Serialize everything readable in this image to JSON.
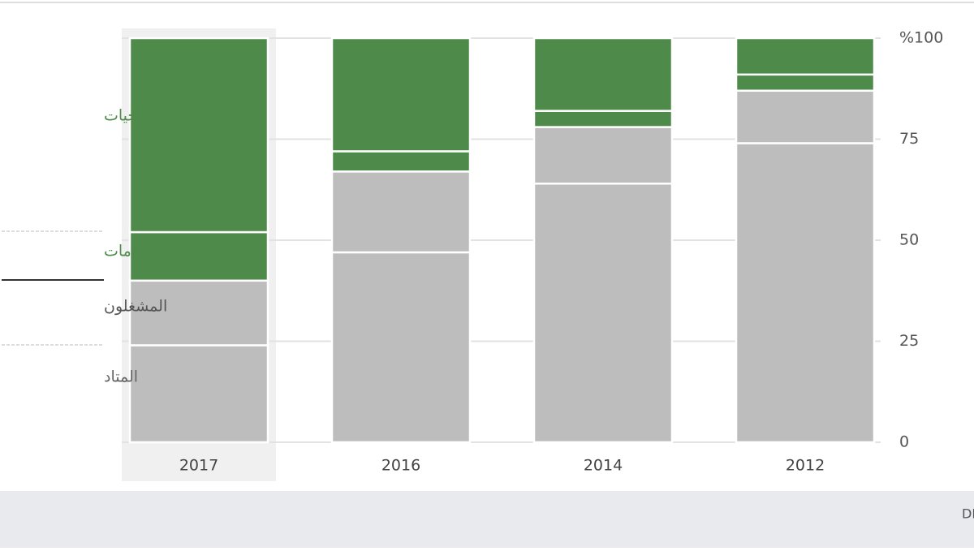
{
  "chart_data": {
    "type": "stacked_bar",
    "categories": [
      "2017",
      "2016",
      "2014",
      "2012"
    ],
    "series": [
      {
        "name": "المتاد",
        "color": "#bdbdbd",
        "values": [
          24,
          47,
          64,
          74
        ]
      },
      {
        "name": "المشغلون",
        "color": "#bdbdbd",
        "values": [
          16,
          20,
          14,
          13
        ]
      },
      {
        "name": "الخدمات",
        "color": "#4e8a4a",
        "values": [
          12,
          5,
          4,
          4
        ]
      },
      {
        "name": "البرمجيات",
        "color": "#4e8a4a",
        "values": [
          48,
          28,
          18,
          9
        ]
      }
    ],
    "ylim": [
      0,
      100
    ],
    "yticks": [
      0,
      25,
      50,
      75,
      {
        "value": 100,
        "label": "%100"
      }
    ],
    "grid": true,
    "source": "المصدر: DRONEII.COM"
  }
}
